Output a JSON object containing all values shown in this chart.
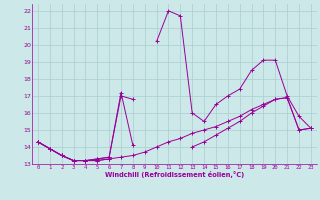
{
  "xlabel": "Windchill (Refroidissement éolien,°C)",
  "bg_color": "#cce8e8",
  "grid_color": "#aacece",
  "line_color": "#990099",
  "xlim": [
    -0.5,
    23.5
  ],
  "ylim": [
    13,
    22.4
  ],
  "yticks": [
    13,
    14,
    15,
    16,
    17,
    18,
    19,
    20,
    21,
    22
  ],
  "xticks": [
    0,
    1,
    2,
    3,
    4,
    5,
    6,
    7,
    8,
    9,
    10,
    11,
    12,
    13,
    14,
    15,
    16,
    17,
    18,
    19,
    20,
    21,
    22,
    23
  ],
  "lines": [
    {
      "segments": [
        {
          "x": [
            0,
            1,
            2,
            3,
            4,
            5,
            6,
            7,
            8
          ],
          "y": [
            14.3,
            13.9,
            13.5,
            13.2,
            13.2,
            13.3,
            13.4,
            17.2,
            14.1
          ]
        }
      ]
    },
    {
      "segments": [
        {
          "x": [
            0,
            1,
            2,
            3,
            4,
            5,
            6,
            7,
            8
          ],
          "y": [
            14.3,
            13.9,
            13.5,
            13.2,
            13.2,
            13.3,
            13.4,
            17.0,
            16.8
          ]
        },
        {
          "x": [
            10,
            11,
            12,
            13,
            14,
            15,
            16,
            17,
            18,
            19,
            20,
            21,
            22,
            23
          ],
          "y": [
            20.2,
            22.0,
            21.7,
            16.0,
            15.5,
            16.5,
            17.0,
            17.4,
            18.5,
            19.1,
            19.1,
            17.0,
            15.8,
            15.1
          ]
        }
      ]
    },
    {
      "segments": [
        {
          "x": [
            0,
            1,
            2,
            3,
            4,
            5,
            6
          ],
          "y": [
            14.3,
            13.9,
            13.5,
            13.2,
            13.2,
            13.2,
            13.3
          ]
        },
        {
          "x": [
            13,
            14,
            15,
            16,
            17,
            18,
            19,
            20,
            21,
            22,
            23
          ],
          "y": [
            14.0,
            14.3,
            14.7,
            15.1,
            15.5,
            16.0,
            16.4,
            16.8,
            16.9,
            15.0,
            15.1
          ]
        }
      ]
    },
    {
      "segments": [
        {
          "x": [
            0,
            1,
            2,
            3,
            4,
            5,
            6,
            7,
            8,
            9,
            10,
            11,
            12,
            13,
            14,
            15,
            16,
            17,
            18,
            19,
            20,
            21,
            22,
            23
          ],
          "y": [
            14.3,
            13.9,
            13.5,
            13.2,
            13.2,
            13.2,
            13.3,
            13.4,
            13.5,
            13.7,
            14.0,
            14.3,
            14.5,
            14.8,
            15.0,
            15.2,
            15.5,
            15.8,
            16.2,
            16.5,
            16.8,
            16.9,
            15.0,
            15.1
          ]
        }
      ]
    }
  ]
}
